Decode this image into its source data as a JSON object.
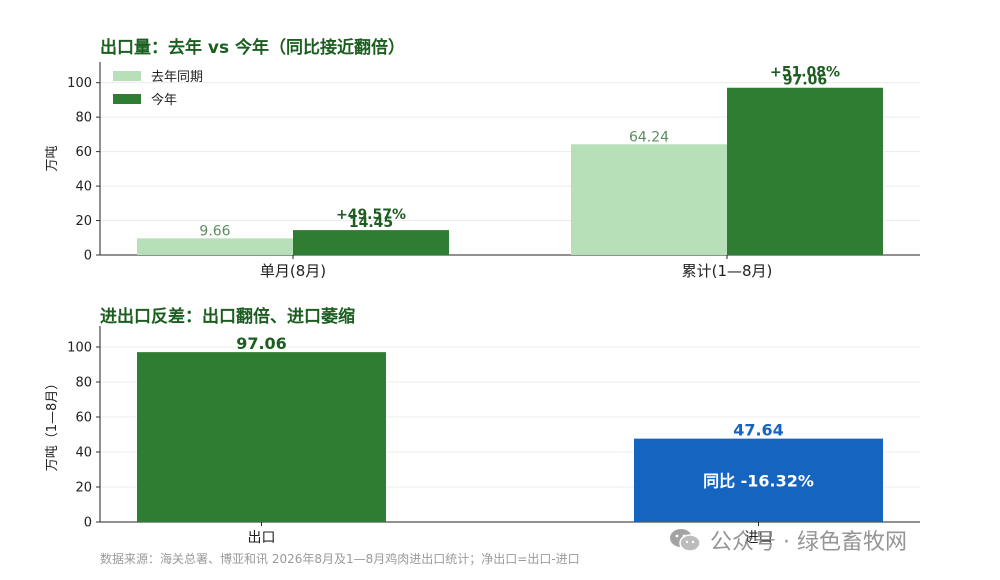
{
  "charts": {
    "top_title": "出口量：去年 vs 今年（同比接近翻倍）",
    "bottom_title": "进出口反差：出口翻倍、进口萎缩"
  },
  "source_note": "数据来源：海关总署、博亚和讯 2026年8月及1—8月鸡肉进出口统计；净出口=出口-进口",
  "watermark": "公众号 · 绿色畜牧网",
  "colors": {
    "last_year": "#b7dfb8",
    "this_year": "#2e7d32",
    "import": "#1565c0",
    "title": "#1b5e20"
  },
  "chart_data": [
    {
      "type": "bar",
      "title": "出口量：去年 vs 今年（同比接近翻倍）",
      "ylabel": "万吨",
      "xlabel": "",
      "ylim": [
        0,
        112
      ],
      "yticks": [
        0,
        20,
        40,
        60,
        80,
        100
      ],
      "categories": [
        "单月(8月)",
        "累计(1—8月)"
      ],
      "series": [
        {
          "name": "去年同期",
          "values": [
            9.66,
            64.24
          ],
          "labels": [
            "9.66",
            "64.24"
          ]
        },
        {
          "name": "今年",
          "values": [
            14.45,
            97.06
          ],
          "labels": [
            "14.45",
            "97.06"
          ]
        }
      ],
      "annotations": [
        "+49.57%",
        "+51.08%"
      ],
      "legend": "top-left",
      "grid": "horizontal"
    },
    {
      "type": "bar",
      "title": "进出口反差：出口翻倍、进口萎缩",
      "ylabel": "万吨（1—8月）",
      "xlabel": "",
      "ylim": [
        0,
        112
      ],
      "yticks": [
        0,
        20,
        40,
        60,
        80,
        100
      ],
      "categories": [
        "出口",
        "进口"
      ],
      "values": [
        97.06,
        47.64
      ],
      "labels": [
        "97.06",
        "47.64"
      ],
      "annotations": [
        "同比 -16.32%"
      ],
      "grid": "horizontal"
    }
  ]
}
